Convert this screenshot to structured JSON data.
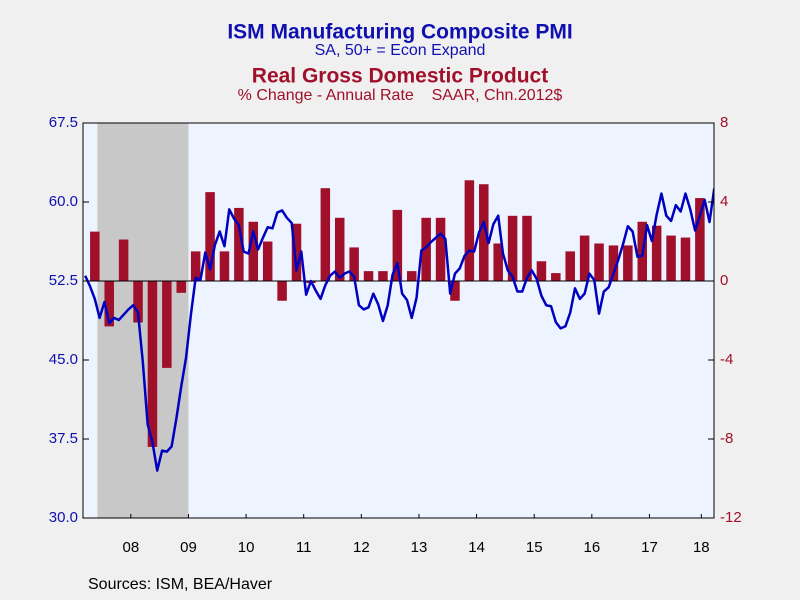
{
  "chart_data": {
    "type": "combo",
    "subtitles": [
      "SA, 50+ = Econ Expand",
      "% Change - Annual Rate    SAAR, Chn.2012$"
    ],
    "source": "Sources:  ISM, BEA/Haver",
    "xlim": [
      2007.67,
      2018.62
    ],
    "xticks": [
      {
        "value": 2008.5,
        "label": "08"
      },
      {
        "value": 2009.5,
        "label": "09"
      },
      {
        "value": 2010.5,
        "label": "10"
      },
      {
        "value": 2011.5,
        "label": "11"
      },
      {
        "value": 2012.5,
        "label": "12"
      },
      {
        "value": 2013.5,
        "label": "13"
      },
      {
        "value": 2014.5,
        "label": "14"
      },
      {
        "value": 2015.5,
        "label": "15"
      },
      {
        "value": 2016.5,
        "label": "16"
      },
      {
        "value": 2017.5,
        "label": "17"
      },
      {
        "value": 2018.4,
        "label": "18"
      }
    ],
    "ylim": [
      30,
      67.5
    ],
    "yticks": [
      {
        "value": 30,
        "label": "30.0"
      },
      37.5,
      {
        "value": 45,
        "label": "45.0"
      },
      52.5,
      {
        "value": 60,
        "label": "60.0"
      },
      67.5
    ],
    "y2lim": [
      -12,
      8
    ],
    "y2ticks": [
      -12,
      -8,
      -4,
      0,
      4,
      8
    ],
    "zero_line": true,
    "recessions": [
      {
        "start": 2007.92,
        "end": 2009.5
      }
    ],
    "series": [
      {
        "name": "ISM Manufacturing Composite PMI",
        "type": "line",
        "axis": "y",
        "color": "#0000c0",
        "x": [
          2007.708,
          2007.792,
          2007.875,
          2007.958,
          2008.042,
          2008.125,
          2008.208,
          2008.292,
          2008.375,
          2008.458,
          2008.542,
          2008.625,
          2008.708,
          2008.792,
          2008.875,
          2008.958,
          2009.042,
          2009.125,
          2009.208,
          2009.292,
          2009.375,
          2009.458,
          2009.542,
          2009.625,
          2009.708,
          2009.792,
          2009.875,
          2009.958,
          2010.042,
          2010.125,
          2010.208,
          2010.292,
          2010.375,
          2010.458,
          2010.542,
          2010.625,
          2010.708,
          2010.792,
          2010.875,
          2010.958,
          2011.042,
          2011.125,
          2011.208,
          2011.292,
          2011.375,
          2011.458,
          2011.542,
          2011.625,
          2011.708,
          2011.792,
          2011.875,
          2011.958,
          2012.042,
          2012.125,
          2012.208,
          2012.292,
          2012.375,
          2012.458,
          2012.542,
          2012.625,
          2012.708,
          2012.792,
          2012.875,
          2012.958,
          2013.042,
          2013.125,
          2013.208,
          2013.292,
          2013.375,
          2013.458,
          2013.542,
          2013.625,
          2013.708,
          2013.792,
          2013.875,
          2013.958,
          2014.042,
          2014.125,
          2014.208,
          2014.292,
          2014.375,
          2014.458,
          2014.542,
          2014.625,
          2014.708,
          2014.792,
          2014.875,
          2014.958,
          2015.042,
          2015.125,
          2015.208,
          2015.292,
          2015.375,
          2015.458,
          2015.542,
          2015.625,
          2015.708,
          2015.792,
          2015.875,
          2015.958,
          2016.042,
          2016.125,
          2016.208,
          2016.292,
          2016.375,
          2016.458,
          2016.542,
          2016.625,
          2016.708,
          2016.792,
          2016.875,
          2016.958,
          2017.042,
          2017.125,
          2017.208,
          2017.292,
          2017.375,
          2017.458,
          2017.542,
          2017.625,
          2017.708,
          2017.792,
          2017.875,
          2017.958,
          2018.042,
          2018.125,
          2018.208,
          2018.292,
          2018.375,
          2018.458,
          2018.542,
          2018.625
        ],
        "values": [
          53.0,
          52.0,
          50.8,
          49.0,
          50.5,
          48.5,
          49.0,
          48.8,
          49.3,
          49.8,
          50.2,
          49.5,
          44.8,
          38.9,
          37.2,
          34.5,
          36.4,
          36.3,
          36.8,
          39.5,
          42.5,
          45.2,
          49.3,
          52.8,
          52.6,
          55.2,
          53.6,
          55.9,
          57.2,
          55.8,
          59.3,
          58.4,
          57.8,
          55.3,
          55.1,
          57.2,
          55.5,
          56.6,
          57.6,
          57.5,
          59.0,
          59.2,
          58.5,
          58.0,
          53.5,
          55.3,
          51.2,
          52.5,
          51.6,
          50.8,
          52.1,
          53.0,
          53.4,
          52.8,
          53.2,
          53.4,
          52.9,
          50.2,
          49.8,
          50.0,
          51.3,
          50.3,
          48.7,
          50.2,
          53.1,
          54.2,
          51.3,
          50.7,
          49.0,
          50.9,
          55.4,
          55.7,
          56.2,
          56.6,
          57.0,
          56.5,
          51.3,
          53.2,
          53.7,
          54.9,
          55.4,
          55.3,
          57.1,
          58.1,
          56.1,
          57.9,
          58.7,
          55.1,
          53.5,
          52.9,
          51.5,
          51.5,
          52.8,
          53.5,
          52.7,
          51.1,
          50.2,
          50.1,
          48.6,
          48.0,
          48.2,
          49.5,
          51.8,
          50.8,
          51.3,
          53.2,
          52.6,
          49.4,
          51.5,
          51.9,
          53.2,
          54.5,
          56.0,
          57.7,
          57.2,
          54.8,
          54.9,
          57.8,
          56.3,
          58.8,
          60.8,
          58.7,
          58.2,
          59.7,
          59.1,
          60.8,
          59.3,
          57.3,
          58.7,
          60.2,
          58.1,
          61.3
        ]
      },
      {
        "name": "Real Gross Domestic Product",
        "type": "bar",
        "axis": "y2",
        "color": "#a0102a",
        "x": [
          2007.875,
          2008.125,
          2008.375,
          2008.625,
          2008.875,
          2009.125,
          2009.375,
          2009.625,
          2009.875,
          2010.125,
          2010.375,
          2010.625,
          2010.875,
          2011.125,
          2011.375,
          2011.625,
          2011.875,
          2012.125,
          2012.375,
          2012.625,
          2012.875,
          2013.125,
          2013.375,
          2013.625,
          2013.875,
          2014.125,
          2014.375,
          2014.625,
          2014.875,
          2015.125,
          2015.375,
          2015.625,
          2015.875,
          2016.125,
          2016.375,
          2016.625,
          2016.875,
          2017.125,
          2017.375,
          2017.625,
          2017.875,
          2018.125,
          2018.375
        ],
        "values": [
          2.5,
          -2.3,
          2.1,
          -2.1,
          -8.4,
          -4.4,
          -0.6,
          1.5,
          4.5,
          1.5,
          3.7,
          3.0,
          2.0,
          -1.0,
          2.9,
          -0.1,
          4.7,
          3.2,
          1.7,
          0.5,
          0.5,
          3.6,
          0.5,
          3.2,
          3.2,
          -1.0,
          5.1,
          4.9,
          1.9,
          3.3,
          3.3,
          1.0,
          0.4,
          1.5,
          2.3,
          1.9,
          1.8,
          1.8,
          3.0,
          2.8,
          2.3,
          2.2,
          4.2
        ]
      }
    ]
  }
}
